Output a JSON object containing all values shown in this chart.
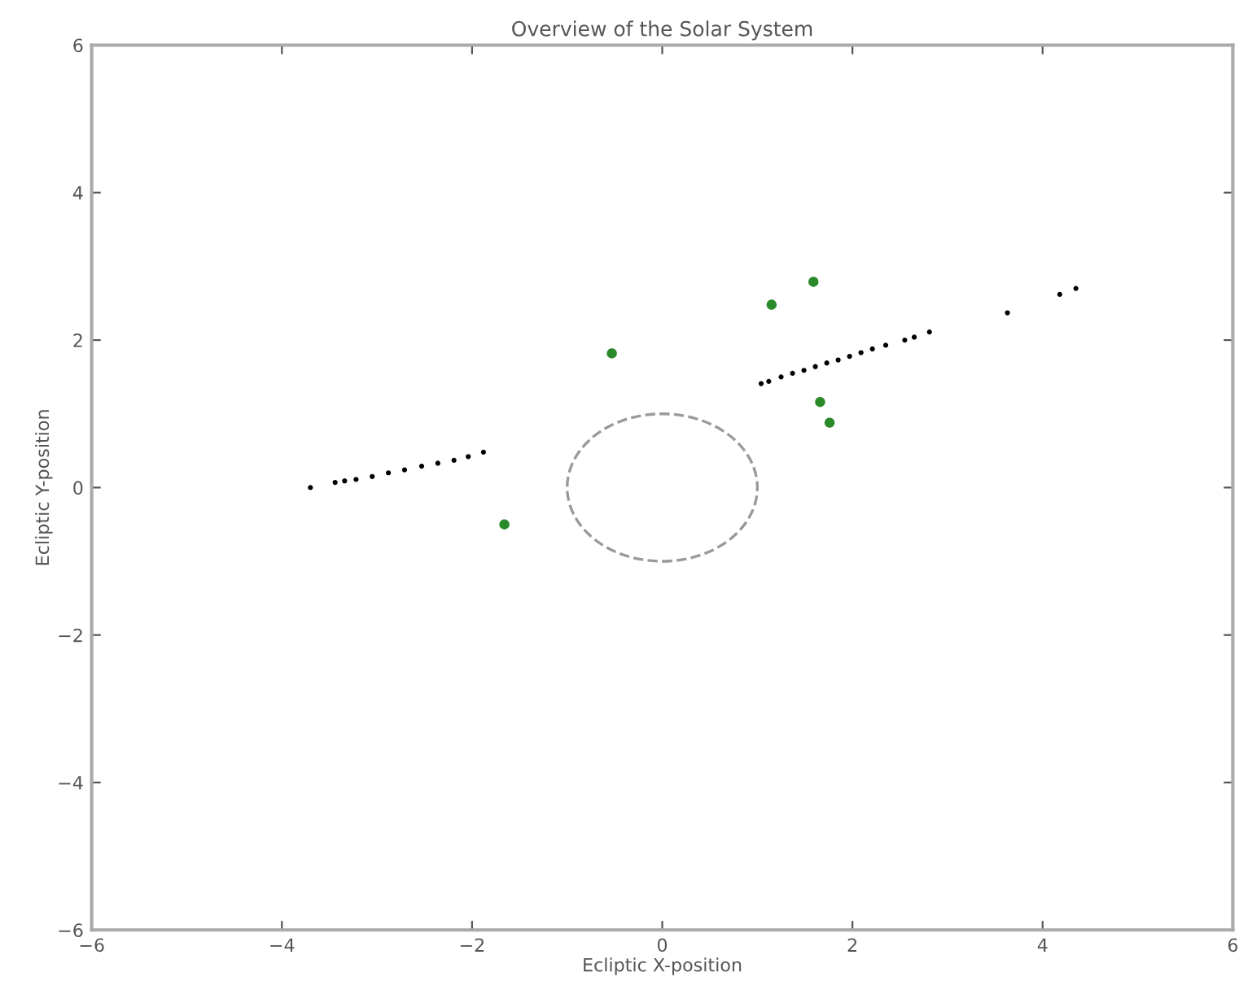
{
  "chart_data": {
    "type": "scatter",
    "title": "Overview of the Solar System",
    "xlabel": "Ecliptic X-position",
    "ylabel": "Ecliptic Y-position",
    "xlim": [
      -6,
      6
    ],
    "ylim": [
      -6,
      6
    ],
    "xticks": [
      {
        "value": -6,
        "label": "−6"
      },
      {
        "value": -4,
        "label": "−4"
      },
      {
        "value": -2,
        "label": "−2"
      },
      0,
      2,
      4,
      6
    ],
    "yticks": [
      {
        "value": -6,
        "label": "−6"
      },
      {
        "value": -4,
        "label": "−4"
      },
      {
        "value": -2,
        "label": "−2"
      },
      0,
      2,
      4,
      6
    ],
    "grid": false,
    "legend": false,
    "marker": "circle",
    "series": [
      {
        "color": "#000000",
        "x": [
          -3.7,
          -3.44,
          -3.34,
          -3.22,
          -3.05,
          -2.88,
          -2.71,
          -2.53,
          -2.36,
          -2.19,
          -2.04,
          -1.88,
          1.04,
          1.12,
          1.25,
          1.37,
          1.49,
          1.61,
          1.73,
          1.85,
          1.97,
          2.09,
          2.21,
          2.35,
          2.55,
          2.65,
          2.81,
          3.63,
          4.18,
          4.35
        ],
        "values": [
          0.0,
          0.07,
          0.09,
          0.11,
          0.15,
          0.2,
          0.24,
          0.29,
          0.33,
          0.37,
          0.42,
          0.48,
          1.41,
          1.44,
          1.5,
          1.55,
          1.59,
          1.64,
          1.69,
          1.73,
          1.78,
          1.83,
          1.88,
          1.93,
          2.0,
          2.04,
          2.11,
          2.37,
          2.62,
          2.7
        ]
      },
      {
        "color": "#2a8a2a",
        "x": [
          -1.66,
          -0.53,
          1.15,
          1.59,
          1.66,
          1.76
        ],
        "values": [
          -0.5,
          1.82,
          2.48,
          2.79,
          1.16,
          0.88
        ]
      }
    ]
  }
}
